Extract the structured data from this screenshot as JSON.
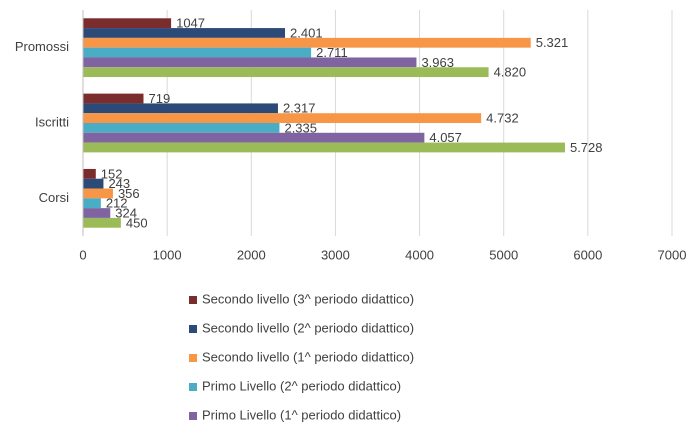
{
  "chart_data": {
    "type": "hbar",
    "categories": [
      "Promossi",
      "Iscritti",
      "Corsi"
    ],
    "series": [
      {
        "name": "Secondo livello (3^ periodo didattico)",
        "color": "#7b2d2d",
        "values": [
          1047,
          719,
          152
        ]
      },
      {
        "name": "Secondo livello (2^ periodo didattico)",
        "color": "#2c4a78",
        "values": [
          2401,
          2317,
          243
        ],
        "value_labels": [
          "2.401",
          "2.317",
          "243"
        ]
      },
      {
        "name": "Secondo livello (1^ periodo didattico)",
        "color": "#f79646",
        "values": [
          5321,
          4732,
          356
        ],
        "value_labels": [
          "5.321",
          "4.732",
          "356"
        ]
      },
      {
        "name": "Primo Livello (2^ periodo didattico)",
        "color": "#4bacc6",
        "values": [
          2711,
          2335,
          212
        ],
        "value_labels": [
          "2.711",
          "2.335",
          "212"
        ]
      },
      {
        "name": "Primo Livello (1^ periodo didattico)",
        "color": "#8064a2",
        "values": [
          3963,
          4057,
          324
        ],
        "value_labels": [
          "3.963",
          "4.057",
          "324"
        ]
      },
      {
        "color": "#9bbb59",
        "values": [
          4820,
          5728,
          450
        ],
        "value_labels": [
          "4.820",
          "5.728",
          "450"
        ]
      }
    ],
    "xlim": [
      0,
      7000
    ],
    "xticks": [
      0,
      1000,
      2000,
      3000,
      4000,
      5000,
      6000,
      7000
    ],
    "grid": true
  }
}
